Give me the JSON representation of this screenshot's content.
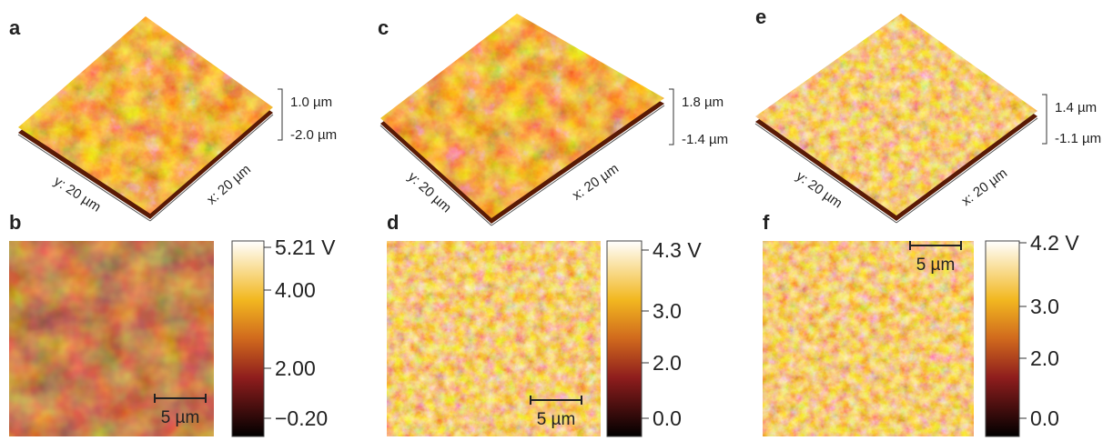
{
  "panels": [
    {
      "label": "a",
      "y_axis": "y: 20 µm",
      "x_axis": "x: 20 µm",
      "z_max": "1.0 µm",
      "z_min": "-2.0 µm"
    },
    {
      "label": "c",
      "y_axis": "y: 20 µm",
      "x_axis": "x: 20 µm",
      "z_max": "1.8 µm",
      "z_min": "-1.4 µm"
    },
    {
      "label": "e",
      "y_axis": "y: 20 µm",
      "x_axis": "x: 20 µm",
      "z_max": "1.4 µm",
      "z_min": "-1.1 µm"
    }
  ],
  "maps": [
    {
      "label": "b",
      "scale_bar": "5 µm",
      "colorbar": [
        "5.21 V",
        "4.00",
        "2.00",
        "−0.20"
      ]
    },
    {
      "label": "d",
      "scale_bar": "5 µm",
      "colorbar": [
        "4.3 V",
        "3.0",
        "2.0",
        "0.0"
      ]
    },
    {
      "label": "f",
      "scale_bar": "5 µm",
      "colorbar": [
        "4.2 V",
        "3.0",
        "2.0",
        "0.0"
      ]
    }
  ]
}
